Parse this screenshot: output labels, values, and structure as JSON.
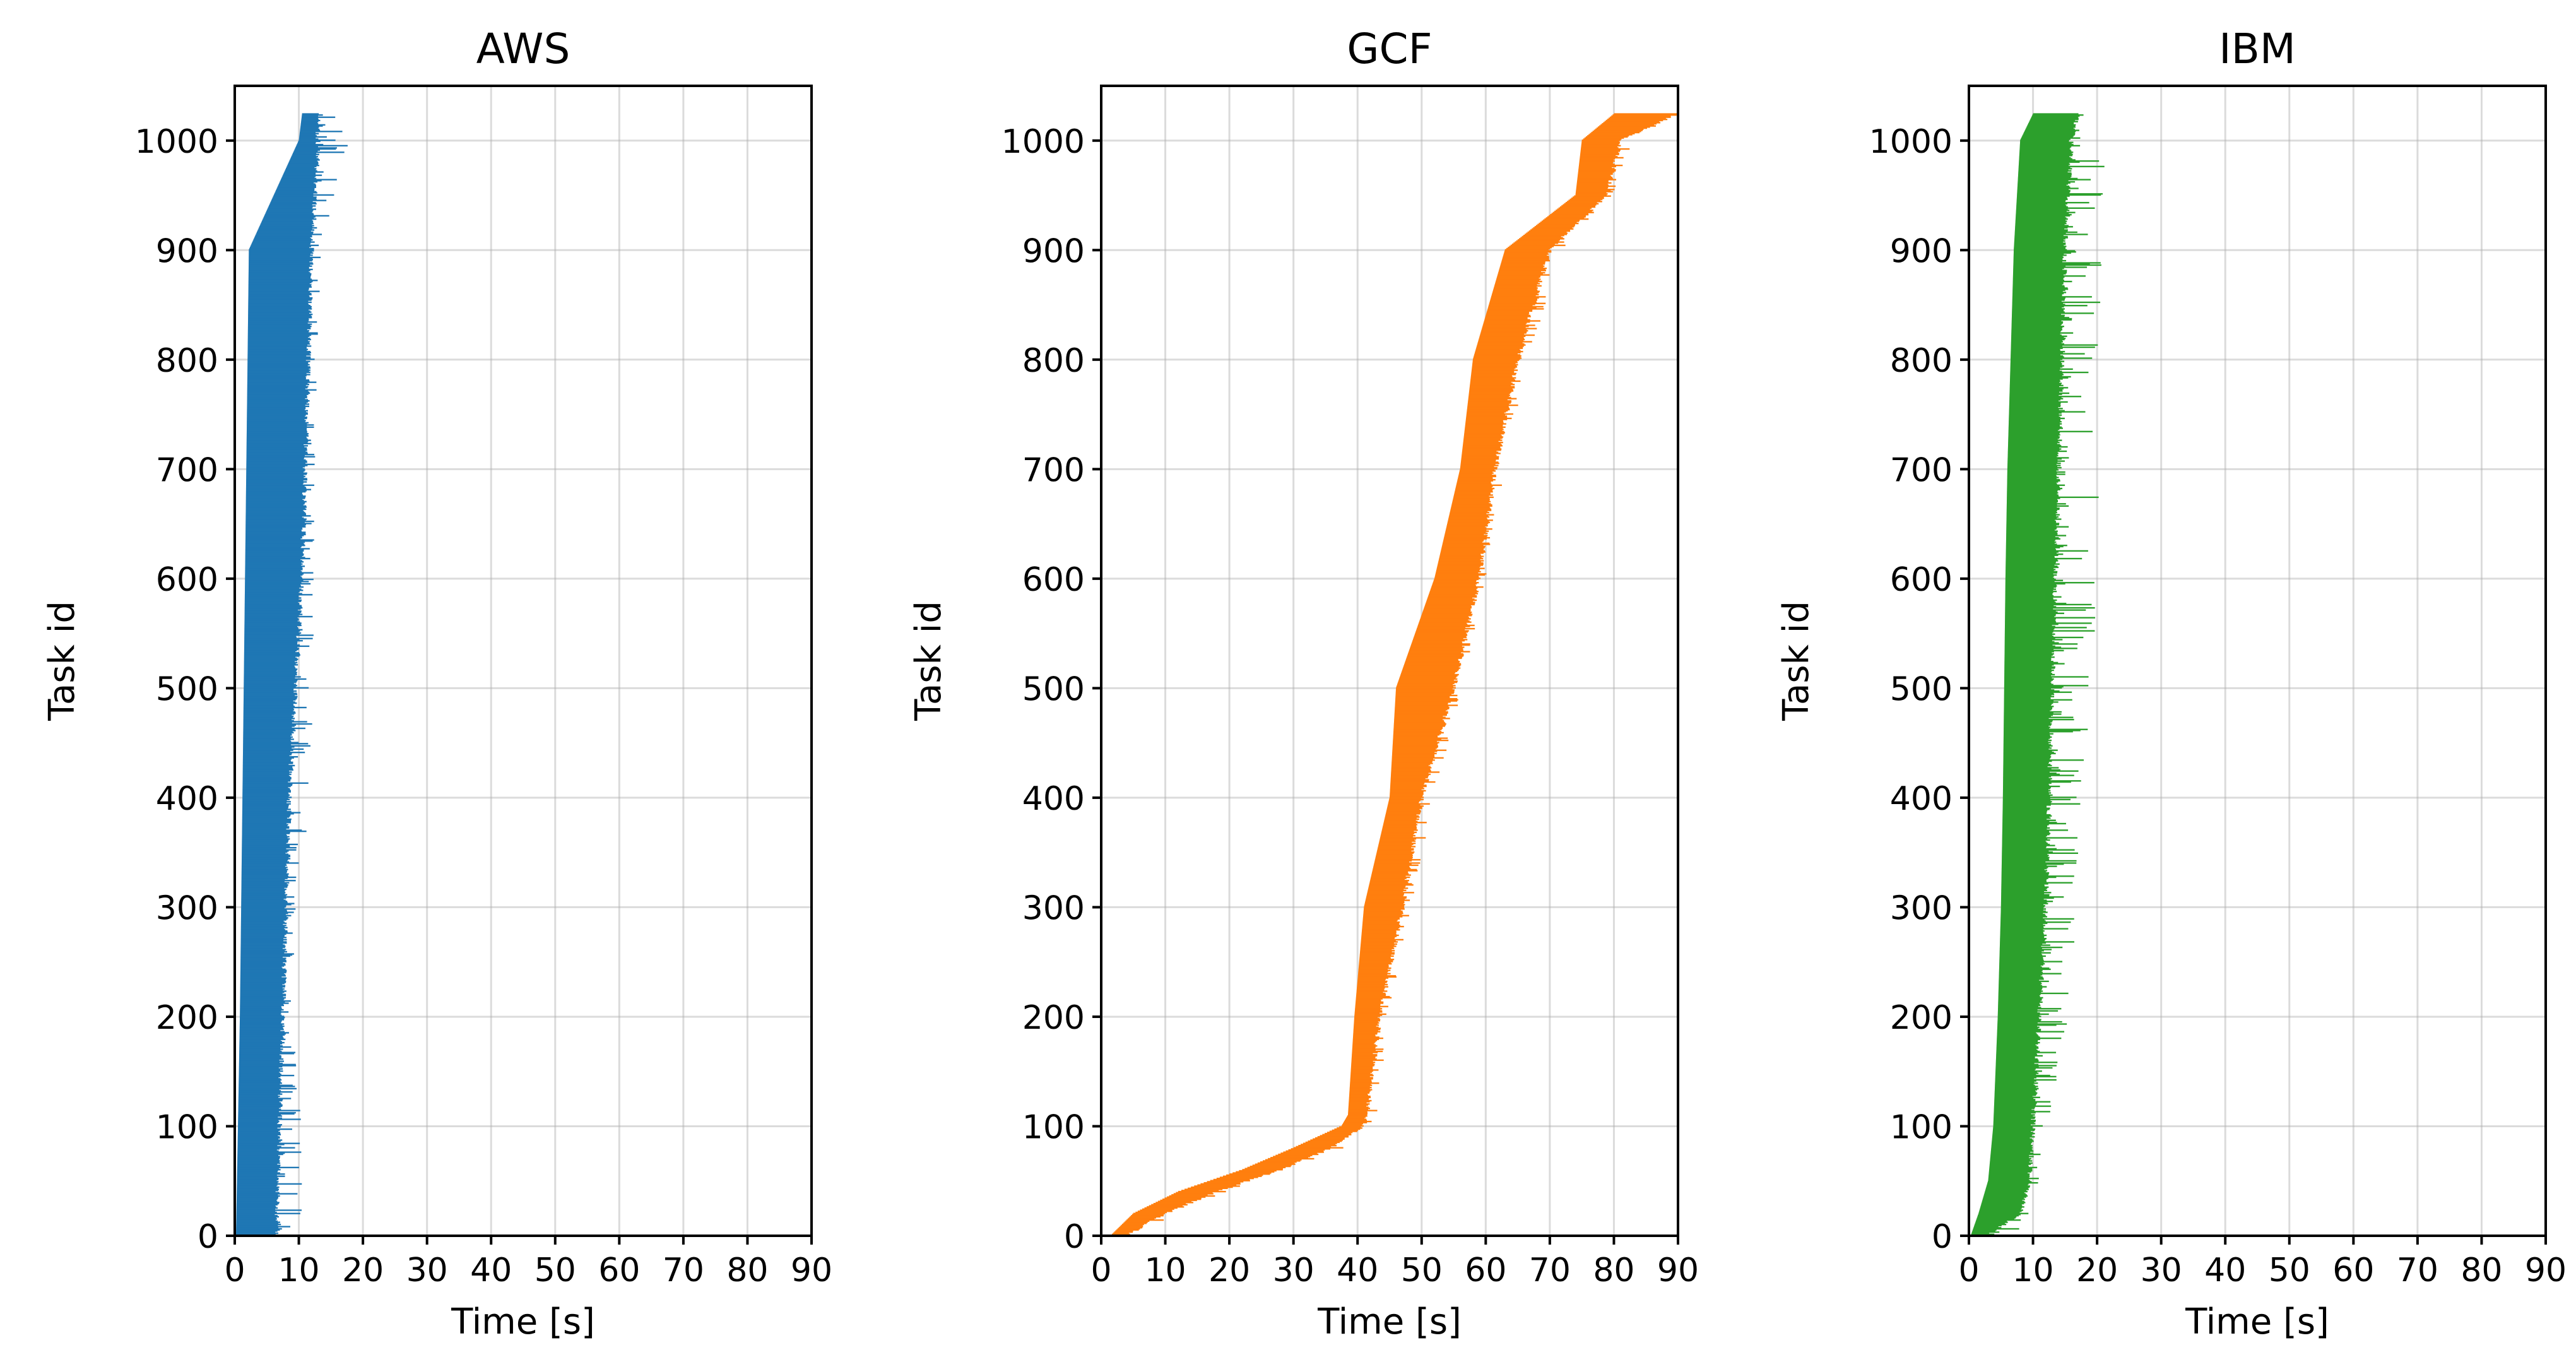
{
  "chart_data": [
    {
      "type": "timeline",
      "title": "AWS",
      "xlabel": "Time [s]",
      "ylabel": "Task id",
      "xlim": [
        0,
        90
      ],
      "ylim": [
        0,
        1050
      ],
      "xticks": [
        0,
        10,
        20,
        30,
        40,
        50,
        60,
        70,
        80,
        90
      ],
      "yticks": [
        0,
        100,
        200,
        300,
        400,
        500,
        600,
        700,
        800,
        900,
        1000
      ],
      "grid": true,
      "color": "#1f77b4",
      "series": [
        {
          "task_id_start": [
            0,
            100,
            200,
            300,
            400,
            500,
            600,
            700,
            800,
            900,
            1000,
            1024
          ],
          "start_s": [
            0.2,
            0.5,
            0.8,
            1.0,
            1.2,
            1.4,
            1.6,
            1.8,
            2.0,
            2.2,
            10.0,
            10.5
          ],
          "end_typical_s": [
            6.5,
            7.0,
            7.5,
            8.0,
            8.5,
            9.5,
            10.5,
            11.0,
            11.5,
            12.0,
            13.0,
            13.0
          ],
          "end_max_s": [
            10.5,
            10.5,
            9.0,
            9.5,
            12.0,
            12.5,
            12.5,
            12.5,
            13.0,
            13.5,
            18.0,
            18.0
          ]
        }
      ]
    },
    {
      "type": "timeline",
      "title": "GCF",
      "xlabel": "Time [s]",
      "ylabel": "Task id",
      "xlim": [
        0,
        90
      ],
      "ylim": [
        0,
        1050
      ],
      "xticks": [
        0,
        10,
        20,
        30,
        40,
        50,
        60,
        70,
        80,
        90
      ],
      "yticks": [
        0,
        100,
        200,
        300,
        400,
        500,
        600,
        700,
        800,
        900,
        1000
      ],
      "grid": true,
      "color": "#ff7f0e",
      "series": [
        {
          "task_id_start": [
            0,
            20,
            40,
            60,
            80,
            100,
            110,
            200,
            300,
            400,
            500,
            600,
            700,
            800,
            900,
            950,
            1000,
            1024
          ],
          "start_s": [
            1.5,
            5.0,
            12.0,
            22.0,
            30.0,
            37.5,
            38.5,
            39.5,
            41.0,
            45.0,
            46.0,
            52.0,
            56.0,
            58.0,
            63.0,
            74.0,
            75.0,
            80.0
          ],
          "end_typical_s": [
            4.0,
            10.0,
            18.0,
            28.0,
            36.0,
            41.0,
            41.5,
            43.5,
            47.0,
            50.0,
            55.0,
            59.0,
            61.5,
            65.0,
            70.0,
            79.0,
            81.0,
            90.0
          ],
          "end_max_s": [
            5.0,
            12.0,
            20.0,
            30.0,
            38.0,
            42.5,
            43.0,
            45.0,
            48.5,
            52.0,
            56.5,
            60.0,
            63.0,
            67.0,
            72.0,
            80.0,
            83.0,
            90.0
          ]
        }
      ]
    },
    {
      "type": "timeline",
      "title": "IBM",
      "xlabel": "Time [s]",
      "ylabel": "Task id",
      "xlim": [
        0,
        90
      ],
      "ylim": [
        0,
        1050
      ],
      "xticks": [
        0,
        10,
        20,
        30,
        40,
        50,
        60,
        70,
        80,
        90
      ],
      "yticks": [
        0,
        100,
        200,
        300,
        400,
        500,
        600,
        700,
        800,
        900,
        1000
      ],
      "grid": true,
      "color": "#2ca02c",
      "series": [
        {
          "task_id_start": [
            0,
            20,
            50,
            100,
            200,
            300,
            400,
            500,
            600,
            700,
            800,
            900,
            1000,
            1024
          ],
          "start_s": [
            0.3,
            1.5,
            3.0,
            3.8,
            4.5,
            5.0,
            5.3,
            5.5,
            5.7,
            6.0,
            6.5,
            7.0,
            8.0,
            10.0
          ],
          "end_typical_s": [
            3.0,
            8.0,
            9.5,
            10.0,
            11.0,
            12.0,
            12.5,
            13.0,
            13.5,
            14.0,
            14.5,
            15.0,
            16.0,
            17.0
          ],
          "end_max_s": [
            8.0,
            9.5,
            11.0,
            12.5,
            16.0,
            17.0,
            18.0,
            19.0,
            20.5,
            20.5,
            20.5,
            21.0,
            21.5,
            21.0
          ]
        }
      ]
    }
  ]
}
